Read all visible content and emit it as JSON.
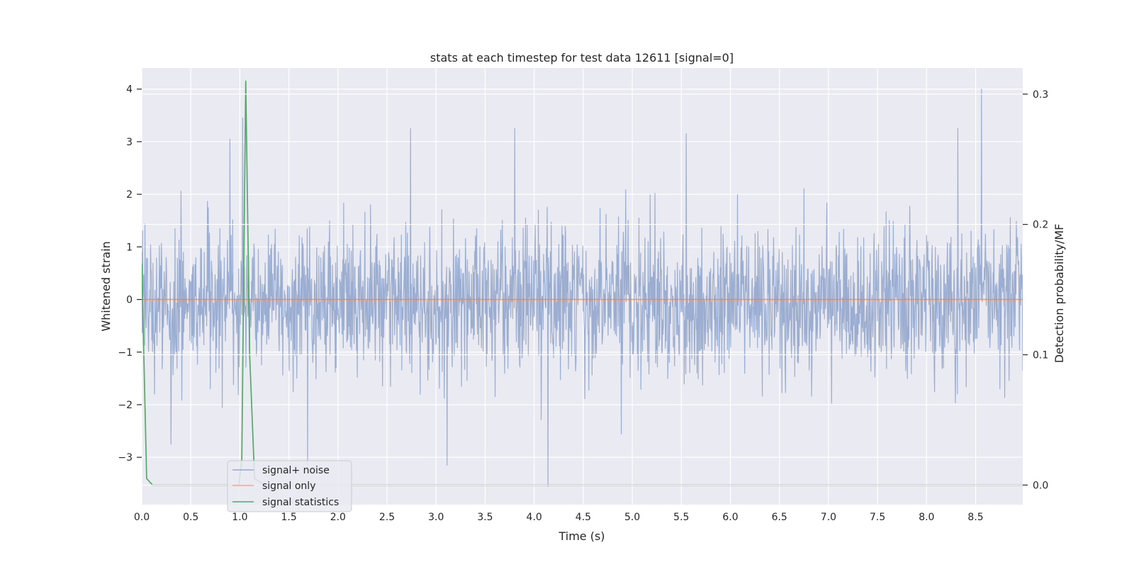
{
  "chart_data": {
    "type": "line",
    "title": "stats at each timestep for test data 12611 [signal=0]",
    "xlabel": "Time (s)",
    "ylabel": "Whitened strain",
    "y2label": "Detection probability/MF",
    "xlim": [
      0.0,
      8.98
    ],
    "ylim": [
      -3.9,
      4.4
    ],
    "y2lim": [
      -0.015,
      0.32
    ],
    "x_ticks": [
      0.0,
      0.5,
      1.0,
      1.5,
      2.0,
      2.5,
      3.0,
      3.5,
      4.0,
      4.5,
      5.0,
      5.5,
      6.0,
      6.5,
      7.0,
      7.5,
      8.0,
      8.5
    ],
    "x_tick_labels": [
      "0.0",
      "0.5",
      "1.0",
      "1.5",
      "2.0",
      "2.5",
      "3.0",
      "3.5",
      "4.0",
      "4.5",
      "5.0",
      "5.5",
      "6.0",
      "6.5",
      "7.0",
      "7.5",
      "8.0",
      "8.5"
    ],
    "y_ticks": [
      4,
      3,
      2,
      1,
      0,
      -1,
      -2,
      -3
    ],
    "y_tick_labels": [
      "4",
      "3",
      "2",
      "1",
      "0",
      "−1",
      "−2",
      "−3"
    ],
    "y2_ticks": [
      0.3,
      0.2,
      0.1,
      0.0
    ],
    "y2_tick_labels": [
      "0.3",
      "0.2",
      "0.1",
      "0.0"
    ],
    "grid": true,
    "legend_position": "lower-left",
    "series": [
      {
        "name": "signal+ noise",
        "axis": "left",
        "color": "#4c72b0",
        "kind": "noise",
        "samples": 2200,
        "amplitude_std": 0.72,
        "extremes": [
          {
            "x": 0.9,
            "y": 3.05
          },
          {
            "x": 1.03,
            "y": 3.45
          },
          {
            "x": 2.74,
            "y": 3.25
          },
          {
            "x": 3.8,
            "y": 3.25
          },
          {
            "x": 5.55,
            "y": 3.15
          },
          {
            "x": 8.32,
            "y": 3.25
          },
          {
            "x": 8.56,
            "y": 4.0
          },
          {
            "x": 4.14,
            "y": -3.55
          },
          {
            "x": 1.69,
            "y": -3.25
          },
          {
            "x": 3.11,
            "y": -3.15
          },
          {
            "x": 0.3,
            "y": -2.75
          }
        ]
      },
      {
        "name": "signal only",
        "axis": "left",
        "color": "#dd8452",
        "x": [
          0.0,
          8.98
        ],
        "y": [
          0.0,
          0.0
        ]
      },
      {
        "name": "signal statistics",
        "axis": "right",
        "color": "#55a868",
        "x": [
          0.0,
          0.05,
          0.11,
          0.99,
          1.02,
          1.06,
          1.1,
          1.15,
          1.25,
          8.98
        ],
        "y": [
          0.17,
          0.005,
          0.0,
          0.0,
          0.02,
          0.31,
          0.1,
          0.005,
          0.0,
          0.0
        ]
      }
    ]
  }
}
